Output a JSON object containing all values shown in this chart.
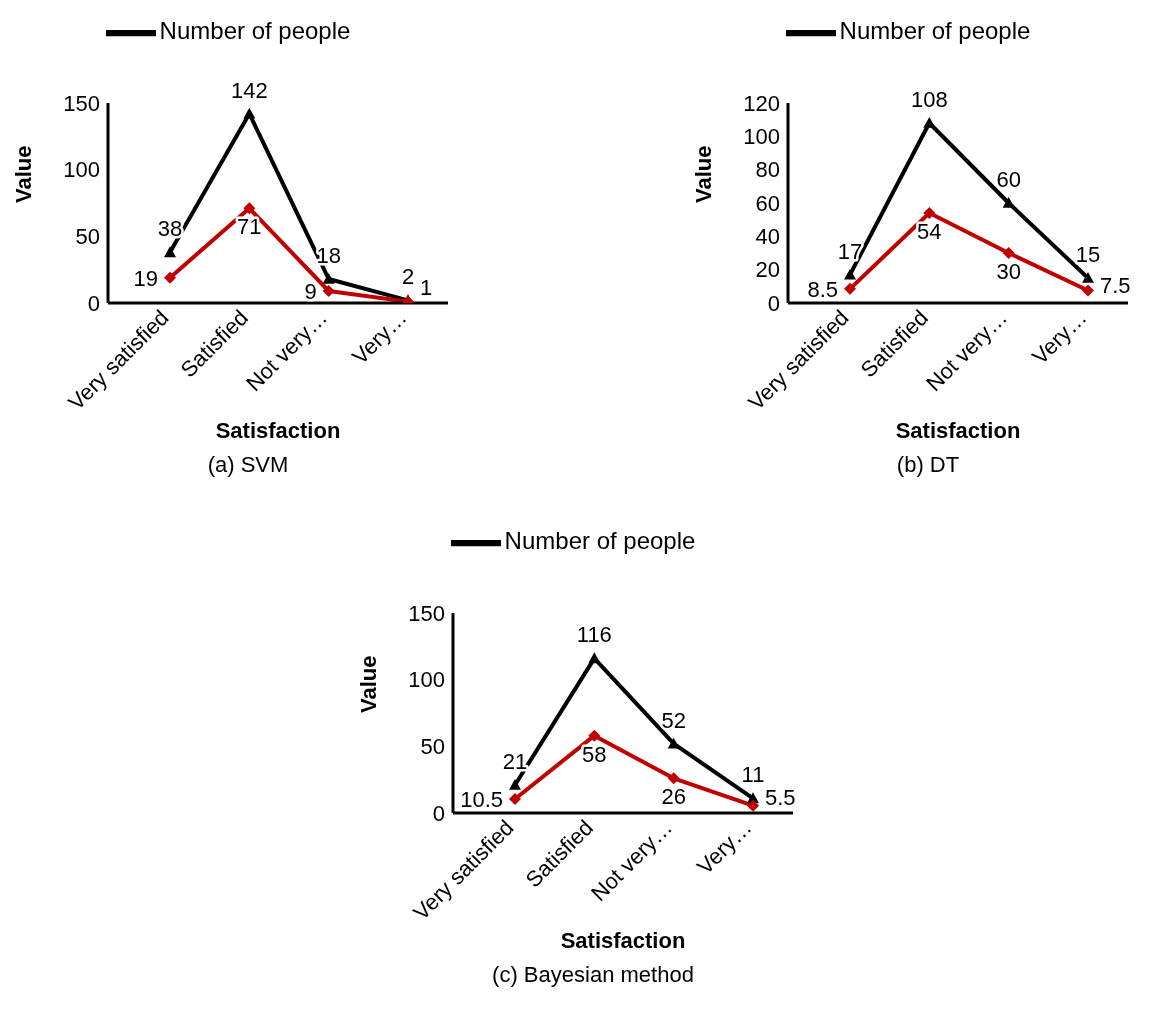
{
  "chart_data": [
    {
      "type": "line",
      "xlabel": "Satisfaction",
      "ylabel": "Value",
      "categories": [
        "Very satisfied",
        "Satisfied",
        "Not very…",
        "Very…"
      ],
      "ylim": [
        0,
        150
      ],
      "yticks": [
        0,
        50,
        100,
        150
      ],
      "grid": false,
      "legend": "top",
      "data_labels": true,
      "annotations": [
        "(a) SVM"
      ],
      "series": [
        {
          "name": "Number of people",
          "color": "#000000",
          "marker": "triangle",
          "values": [
            38,
            142,
            18,
            2
          ]
        },
        {
          "color": "#c00000",
          "marker": "diamond",
          "values": [
            19,
            71,
            9,
            1
          ]
        }
      ]
    },
    {
      "type": "line",
      "xlabel": "Satisfaction",
      "ylabel": "Value",
      "categories": [
        "Very satisfied",
        "Satisfied",
        "Not very…",
        "Very…"
      ],
      "ylim": [
        0,
        120
      ],
      "yticks": [
        0,
        20,
        40,
        60,
        80,
        100,
        120
      ],
      "grid": false,
      "legend": "top",
      "data_labels": true,
      "annotations": [
        "(b) DT"
      ],
      "series": [
        {
          "name": "Number of people",
          "color": "#000000",
          "marker": "triangle",
          "values": [
            17,
            108,
            60,
            15
          ]
        },
        {
          "color": "#c00000",
          "marker": "diamond",
          "values": [
            8.5,
            54,
            30,
            7.5
          ]
        }
      ]
    },
    {
      "type": "line",
      "xlabel": "Satisfaction",
      "ylabel": "Value",
      "categories": [
        "Very satisfied",
        "Satisfied",
        "Not very…",
        "Very…"
      ],
      "ylim": [
        0,
        150
      ],
      "yticks": [
        0,
        50,
        100,
        150
      ],
      "grid": false,
      "legend": "top",
      "data_labels": true,
      "annotations": [
        "(c) Bayesian method"
      ],
      "series": [
        {
          "name": "Number of people",
          "color": "#000000",
          "marker": "triangle",
          "values": [
            21,
            116,
            52,
            11
          ]
        },
        {
          "color": "#c00000",
          "marker": "diamond",
          "values": [
            10.5,
            58,
            26,
            5.5
          ]
        }
      ]
    }
  ]
}
